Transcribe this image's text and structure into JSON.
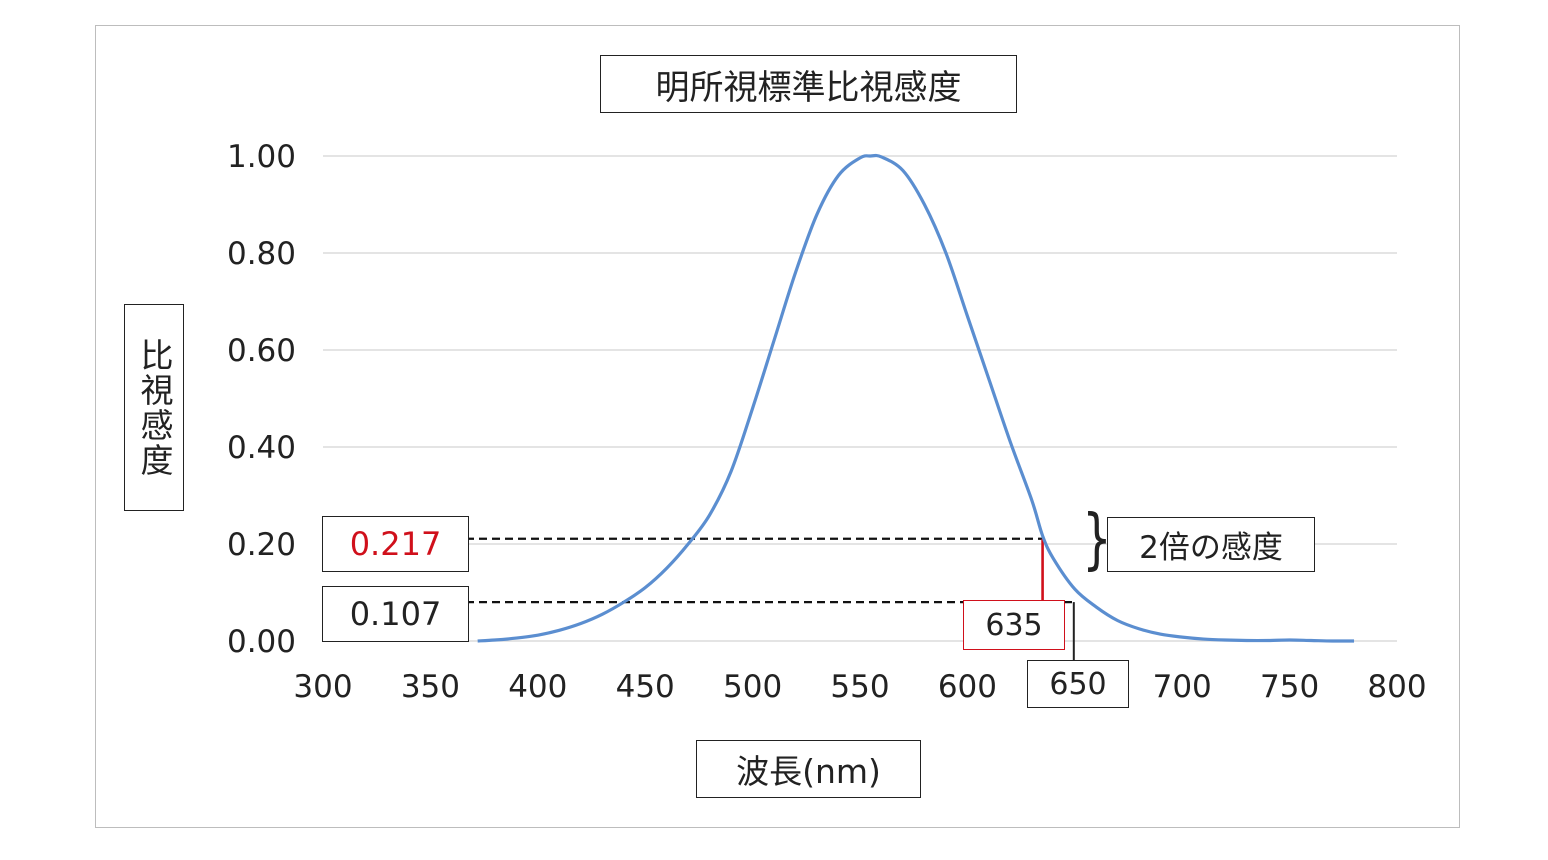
{
  "chart_data": {
    "type": "line",
    "title": "明所視標準比視感度",
    "xlabel": "波長(nm)",
    "ylabel": "比視感度",
    "xlim": [
      300,
      800
    ],
    "ylim": [
      0,
      1
    ],
    "x_ticks": [
      "300",
      "350",
      "400",
      "450",
      "500",
      "550",
      "600",
      "650",
      "700",
      "750",
      "800"
    ],
    "y_ticks": [
      "0.00",
      "0.20",
      "0.40",
      "0.60",
      "0.80",
      "1.00"
    ],
    "grid": true,
    "series": [
      {
        "x": [
          372,
          380,
          390,
          400,
          410,
          420,
          430,
          440,
          450,
          460,
          470,
          480,
          490,
          500,
          510,
          520,
          530,
          540,
          550,
          555,
          560,
          570,
          580,
          590,
          600,
          610,
          620,
          630,
          635,
          640,
          650,
          660,
          670,
          680,
          690,
          700,
          710,
          720,
          730,
          740,
          750,
          760,
          770,
          780
        ],
        "y": [
          0.0,
          0.002,
          0.006,
          0.012,
          0.022,
          0.036,
          0.055,
          0.08,
          0.11,
          0.15,
          0.2,
          0.26,
          0.35,
          0.48,
          0.62,
          0.76,
          0.88,
          0.96,
          0.996,
          1.0,
          0.998,
          0.97,
          0.9,
          0.8,
          0.67,
          0.54,
          0.41,
          0.29,
          0.217,
          0.17,
          0.107,
          0.07,
          0.042,
          0.025,
          0.014,
          0.008,
          0.004,
          0.002,
          0.001,
          0.001,
          0.002,
          0.001,
          0.0,
          0.0
        ],
        "color": "#5b8ed0"
      }
    ],
    "annotations": [
      {
        "value_label": "0.217",
        "wavelength_label": "635",
        "y": 0.217,
        "x": 635,
        "color": "#d0101b"
      },
      {
        "value_label": "0.107",
        "wavelength_label": "650",
        "y": 0.107,
        "x": 650,
        "color": "#222222"
      }
    ],
    "ratio_label": "2倍の感度"
  }
}
